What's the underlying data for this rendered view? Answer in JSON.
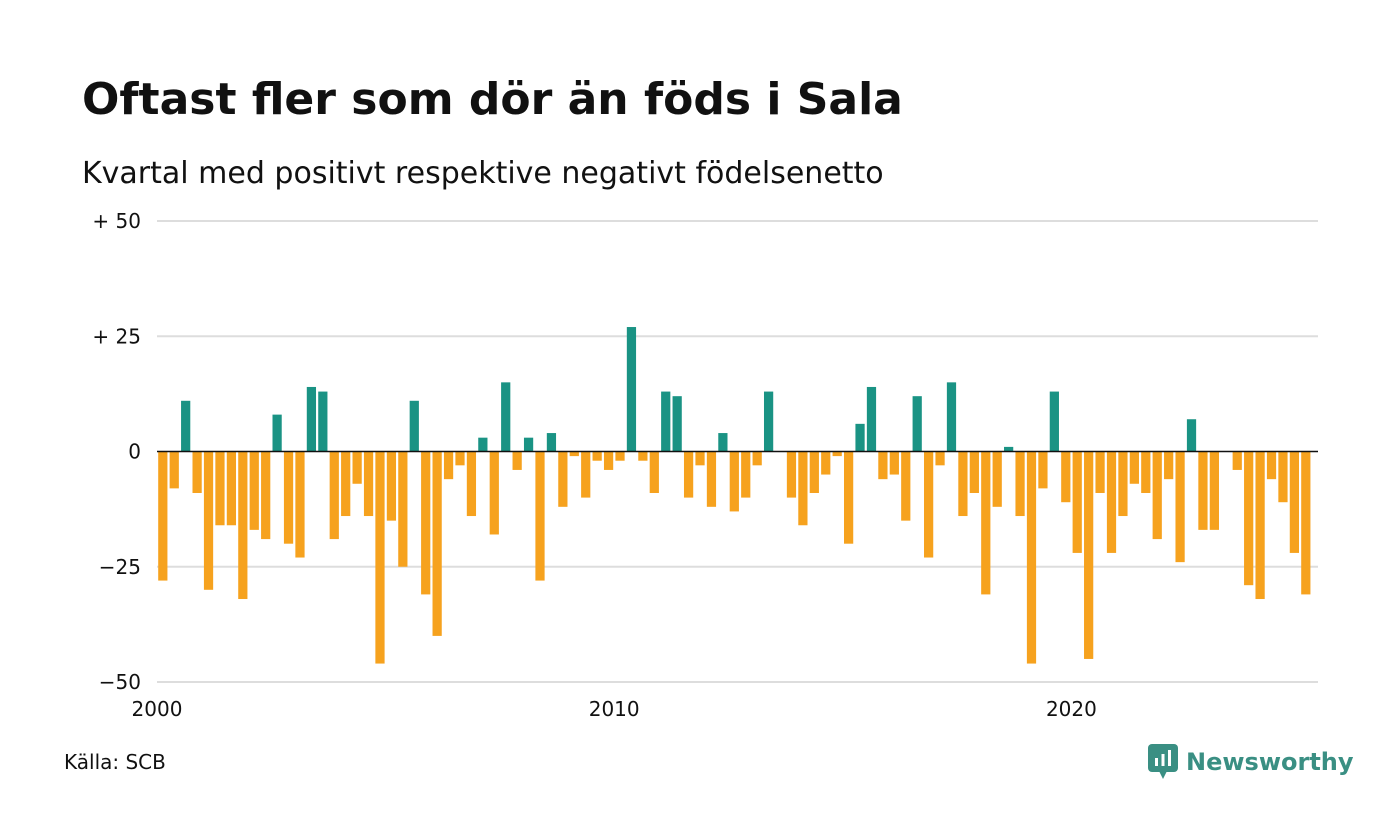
{
  "chart_data": {
    "type": "bar",
    "title": "Oftast fler som dör än föds i Sala",
    "subtitle": "Kvartal med positivt respektive negativt födelsenetto",
    "source": "Källa: SCB",
    "brand": "Newsworthy",
    "ylim": [
      -50,
      50
    ],
    "y_ticks": [
      {
        "value": 50,
        "label": "+ 50"
      },
      {
        "value": 25,
        "label": "+ 25"
      },
      {
        "value": 0,
        "label": "0"
      },
      {
        "value": -25,
        "label": "−25"
      },
      {
        "value": -50,
        "label": "−50"
      }
    ],
    "x_ticks": [
      {
        "value": 2000,
        "label": "2000"
      },
      {
        "value": 2010,
        "label": "2010"
      },
      {
        "value": 2020,
        "label": "2020"
      }
    ],
    "grid": true,
    "colors": {
      "positive": "#1a9384",
      "negative": "#f6a21e",
      "grid": "#dddddd",
      "zero_line": "#111111"
    },
    "categories": [
      "2000 K1",
      "2000 K2",
      "2000 K3",
      "2000 K4",
      "2001 K1",
      "2001 K2",
      "2001 K3",
      "2001 K4",
      "2002 K1",
      "2002 K2",
      "2002 K3",
      "2002 K4",
      "2003 K1",
      "2003 K2",
      "2003 K3",
      "2003 K4",
      "2004 K1",
      "2004 K2",
      "2004 K3",
      "2004 K4",
      "2005 K1",
      "2005 K2",
      "2005 K3",
      "2005 K4",
      "2006 K1",
      "2006 K2",
      "2006 K3",
      "2006 K4",
      "2007 K1",
      "2007 K2",
      "2007 K3",
      "2007 K4",
      "2008 K1",
      "2008 K2",
      "2008 K3",
      "2008 K4",
      "2009 K1",
      "2009 K2",
      "2009 K3",
      "2009 K4",
      "2010 K1",
      "2010 K2",
      "2010 K3",
      "2010 K4",
      "2011 K1",
      "2011 K2",
      "2011 K3",
      "2011 K4",
      "2012 K1",
      "2012 K2",
      "2012 K3",
      "2012 K4",
      "2013 K1",
      "2013 K2",
      "2013 K3",
      "2013 K4",
      "2014 K1",
      "2014 K2",
      "2014 K3",
      "2014 K4",
      "2015 K1",
      "2015 K2",
      "2015 K3",
      "2015 K4",
      "2016 K1",
      "2016 K2",
      "2016 K3",
      "2016 K4",
      "2017 K1",
      "2017 K2",
      "2017 K3",
      "2017 K4",
      "2018 K1",
      "2018 K2",
      "2018 K3",
      "2018 K4",
      "2019 K1",
      "2019 K2",
      "2019 K3",
      "2019 K4",
      "2020 K1",
      "2020 K2",
      "2020 K3",
      "2020 K4",
      "2021 K1",
      "2021 K2",
      "2021 K3",
      "2021 K4",
      "2022 K1",
      "2022 K2",
      "2022 K3",
      "2022 K4",
      "2023 K1",
      "2023 K2",
      "2023 K3",
      "2023 K4",
      "2024 K1",
      "2024 K2",
      "2024 K3",
      "2024 K4",
      "2025 K1",
      "2025 K2",
      "2025 K3",
      "2025 K4"
    ],
    "values": [
      -28,
      -8,
      11,
      -9,
      -30,
      -16,
      -16,
      -32,
      -17,
      -19,
      8,
      -20,
      -23,
      14,
      13,
      -19,
      -14,
      -7,
      -14,
      -46,
      -15,
      -25,
      11,
      -31,
      -40,
      -6,
      -3,
      -14,
      3,
      -18,
      15,
      -4,
      3,
      -28,
      4,
      -12,
      -1,
      -10,
      -2,
      -4,
      -2,
      27,
      -2,
      -9,
      13,
      12,
      -10,
      -3,
      -12,
      4,
      -13,
      -10,
      -3,
      13,
      0,
      -10,
      -16,
      -9,
      -5,
      -1,
      -20,
      6,
      14,
      -6,
      -5,
      -15,
      12,
      -23,
      -3,
      15,
      -14,
      -9,
      -31,
      -12,
      1,
      -14,
      -46,
      -8,
      13,
      -11,
      -22,
      -45,
      -9,
      -22,
      -14,
      -7,
      -9,
      -19,
      -6,
      -24,
      7,
      -17,
      -17,
      0,
      -4,
      -29,
      -32,
      -6,
      -11,
      -22,
      -31,
      0,
      0,
      0
    ]
  }
}
